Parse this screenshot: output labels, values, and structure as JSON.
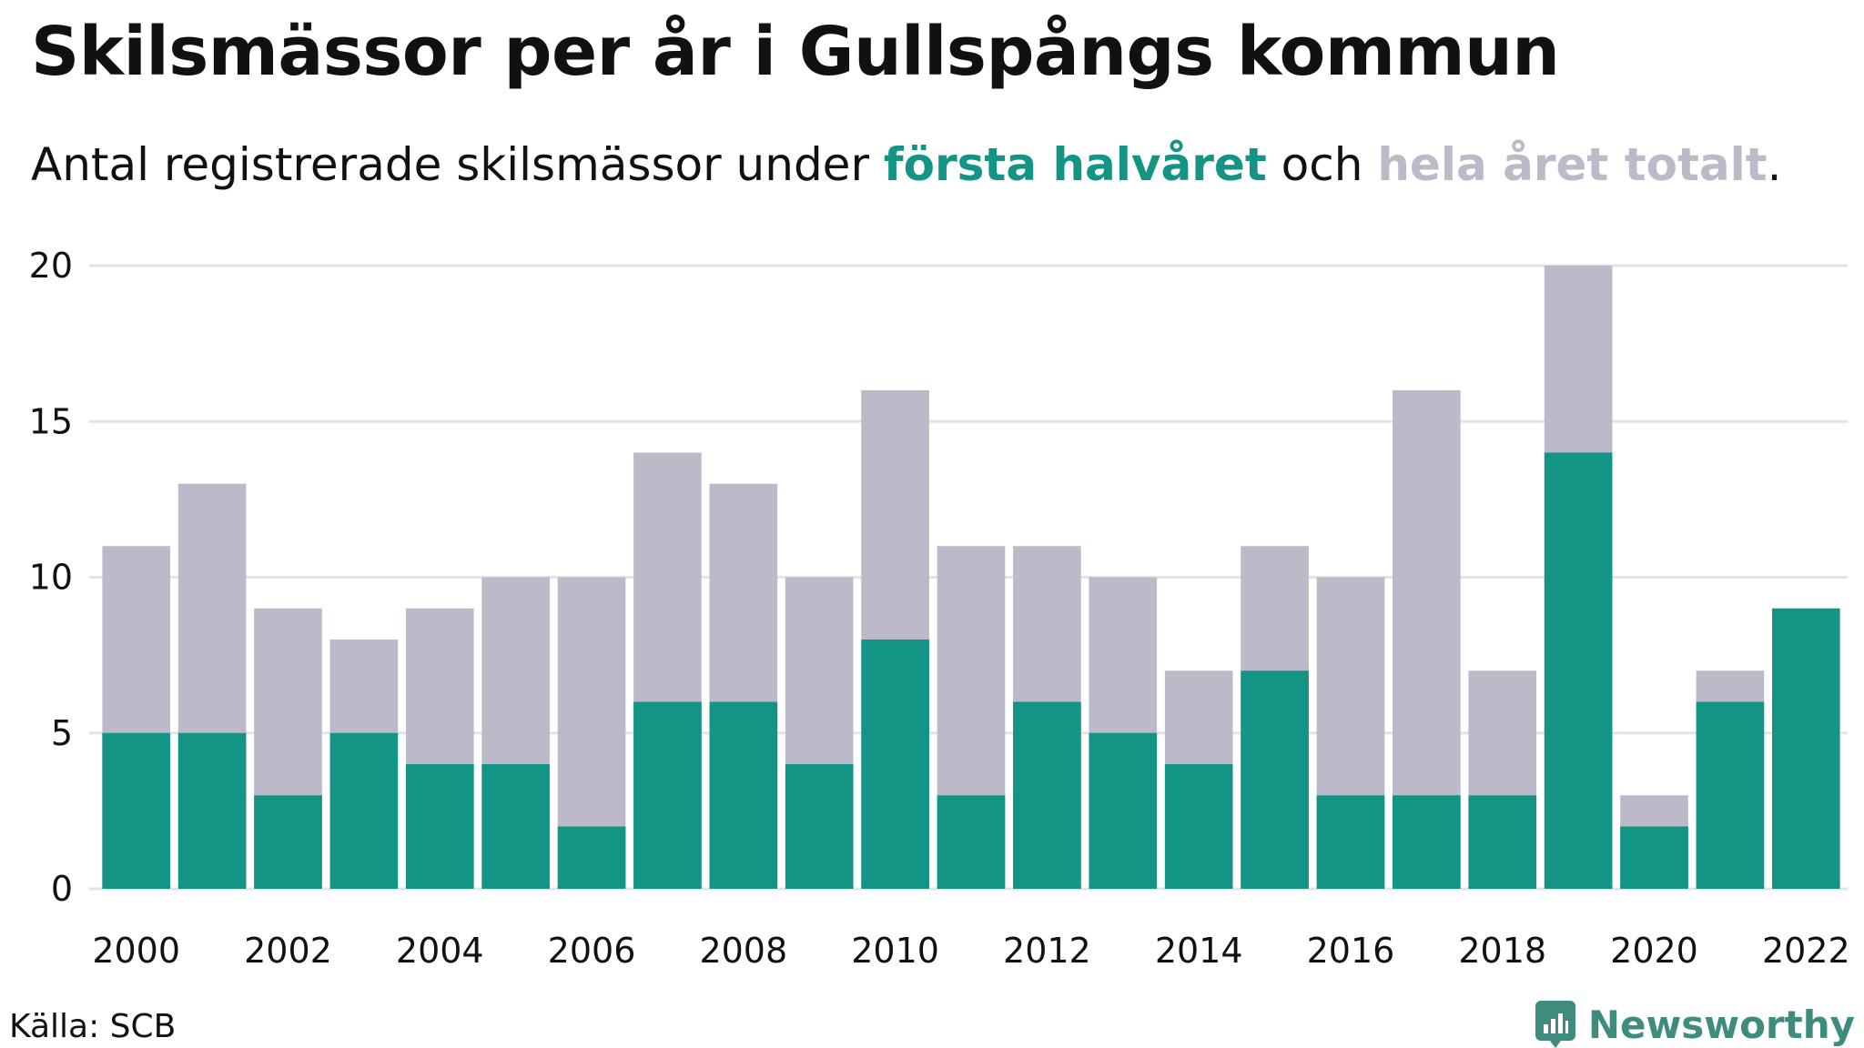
{
  "title": "Skilsmässor per år i Gullspångs kommun",
  "subtitle": {
    "prefix": "Antal registrerade skilsmässor under ",
    "highlight_first": "första halvåret",
    "middle": " och ",
    "highlight_total": "hela året totalt",
    "suffix": "."
  },
  "colors": {
    "first_half": "#139485",
    "total": "#bcbac8",
    "grid": "#e3e3e6",
    "brand": "#3e8c7e"
  },
  "chart_data": {
    "type": "bar",
    "categories": [
      "2000",
      "2001",
      "2002",
      "2003",
      "2004",
      "2005",
      "2006",
      "2007",
      "2008",
      "2009",
      "2010",
      "2011",
      "2012",
      "2013",
      "2014",
      "2015",
      "2016",
      "2017",
      "2018",
      "2019",
      "2020",
      "2021",
      "2022"
    ],
    "series": [
      {
        "name": "hela året totalt",
        "values": [
          11,
          13,
          9,
          8,
          9,
          10,
          10,
          14,
          13,
          10,
          16,
          11,
          11,
          10,
          7,
          11,
          10,
          16,
          7,
          20,
          3,
          7,
          null
        ]
      },
      {
        "name": "första halvåret",
        "values": [
          5,
          5,
          3,
          5,
          4,
          4,
          2,
          6,
          6,
          4,
          8,
          3,
          6,
          5,
          4,
          7,
          3,
          3,
          3,
          14,
          2,
          6,
          9
        ]
      }
    ],
    "x_tick_labels": [
      "2000",
      "2002",
      "2004",
      "2006",
      "2008",
      "2010",
      "2012",
      "2014",
      "2016",
      "2018",
      "2020",
      "2022"
    ],
    "y_ticks": [
      0,
      5,
      10,
      15,
      20
    ],
    "ylim": [
      0,
      20
    ],
    "grid": true
  },
  "source": "Källa: SCB",
  "brand": {
    "name": "Newsworthy",
    "icon": "newsworthy-logo-icon"
  }
}
